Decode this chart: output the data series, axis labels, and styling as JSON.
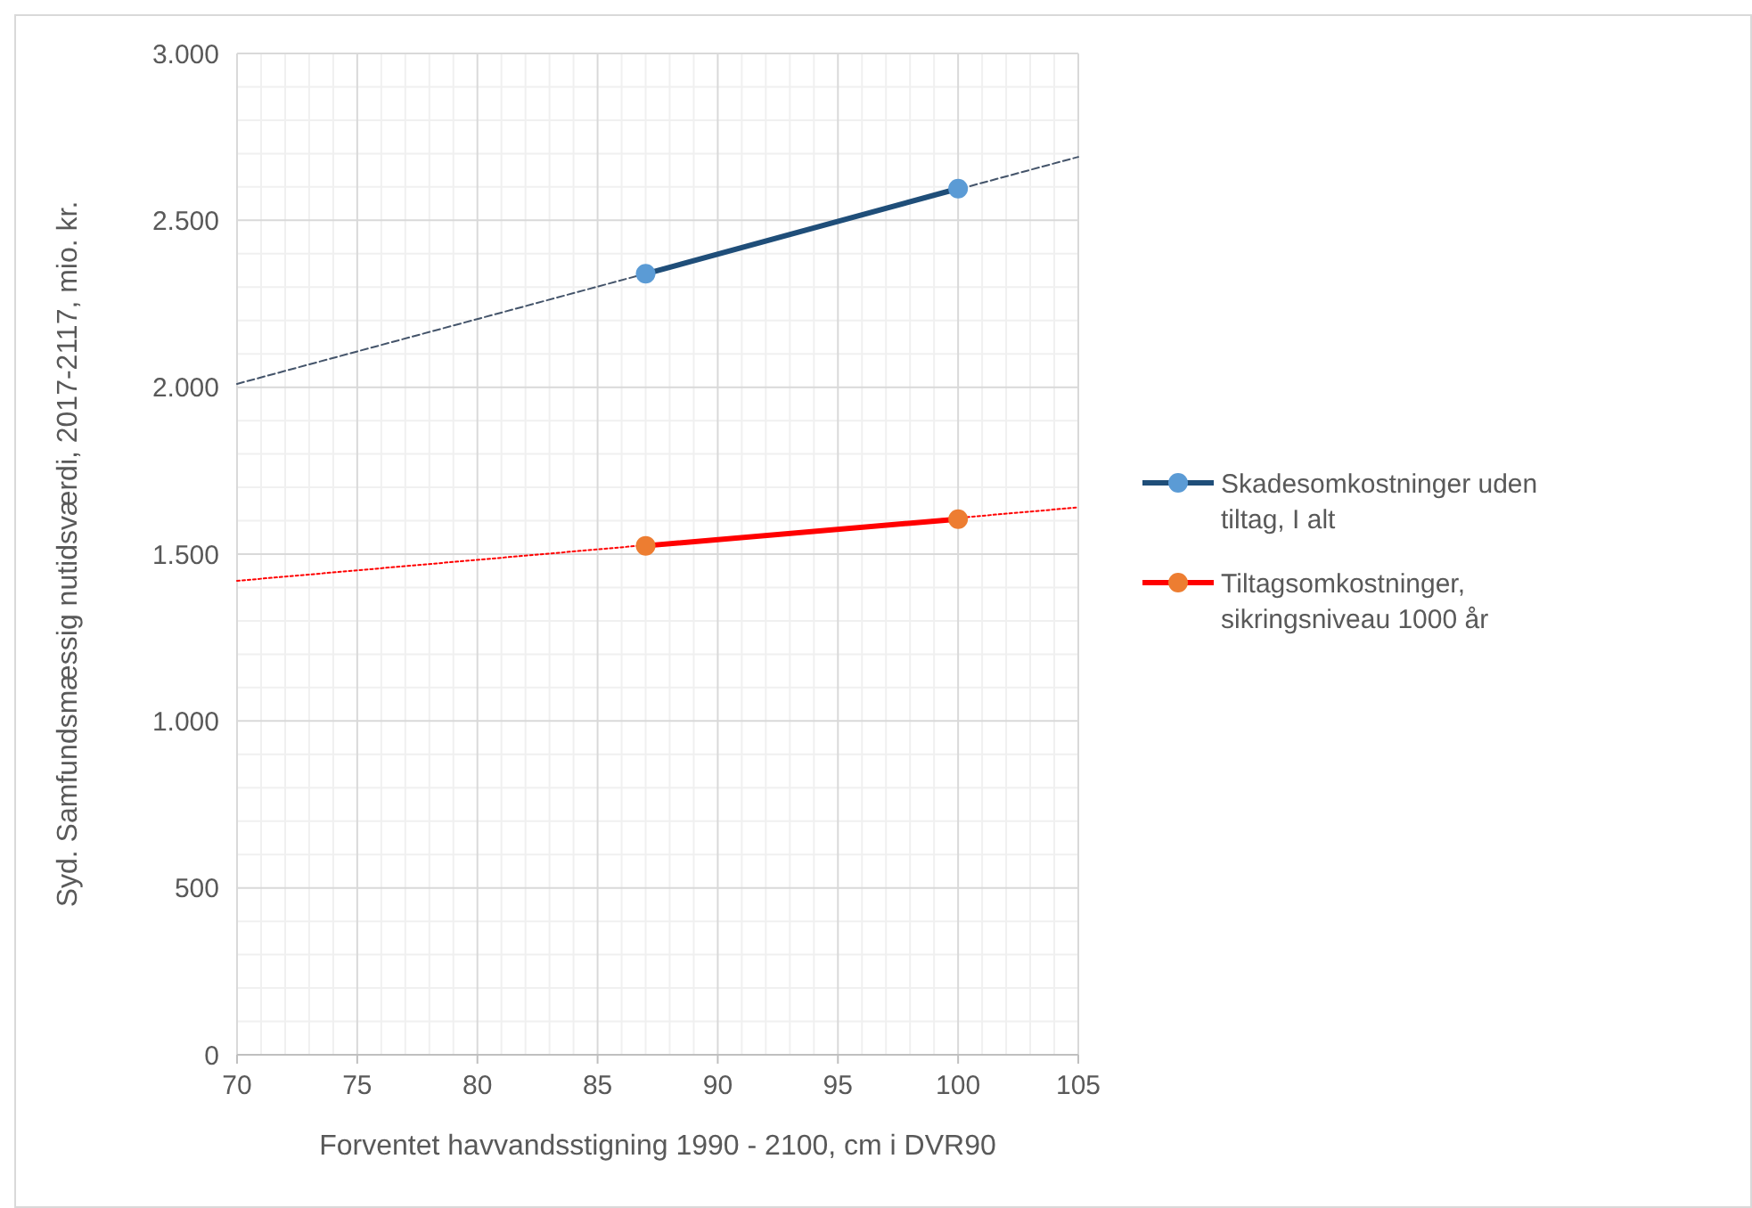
{
  "chart_data": {
    "type": "line",
    "xlabel": "Forventet havvandsstigning 1990 - 2100, cm i DVR90",
    "ylabel": "Syd. Samfundsmæssig nutidsværdi, 2017-2117, mio. kr.",
    "xlim": [
      70,
      105
    ],
    "xticks": [
      70,
      75,
      80,
      85,
      90,
      95,
      100,
      105
    ],
    "ylim": [
      0,
      3000
    ],
    "yticks": [
      0,
      {
        "value": 500,
        "label": "500"
      },
      {
        "value": 1000,
        "label": "1.000"
      },
      {
        "value": 1500,
        "label": "1.500"
      },
      {
        "value": 2000,
        "label": "2.000"
      },
      {
        "value": 2500,
        "label": "2.500"
      },
      {
        "value": 3000,
        "label": "3.000"
      }
    ],
    "grid": true,
    "legend": "right",
    "marker": "circle",
    "series": [
      {
        "name": "Skadesomkostninger uden tiltag, I alt",
        "color": "#1f4e79",
        "colors": [
          "#5b9bd5",
          "#5b9bd5"
        ],
        "x": [
          87,
          100
        ],
        "values": [
          2340,
          2595
        ],
        "line_style": "solid"
      },
      {
        "name": "Tiltagsomkostninger, sikringsniveau 1000 år",
        "color": "#ff0000",
        "colors": [
          "#ed7d31",
          "#ed7d31"
        ],
        "x": [
          87,
          100
        ],
        "values": [
          1525,
          1605
        ],
        "line_style": "solid"
      },
      {
        "type": "line",
        "color": "#44546a",
        "x": [
          70,
          105
        ],
        "values": [
          2010,
          2690
        ],
        "line_style": "dashed",
        "marker": "none"
      },
      {
        "type": "line",
        "color": "#ff0000",
        "x": [
          70,
          105
        ],
        "values": [
          1420,
          1640
        ],
        "line_style": "dotted",
        "marker": "none"
      }
    ]
  }
}
